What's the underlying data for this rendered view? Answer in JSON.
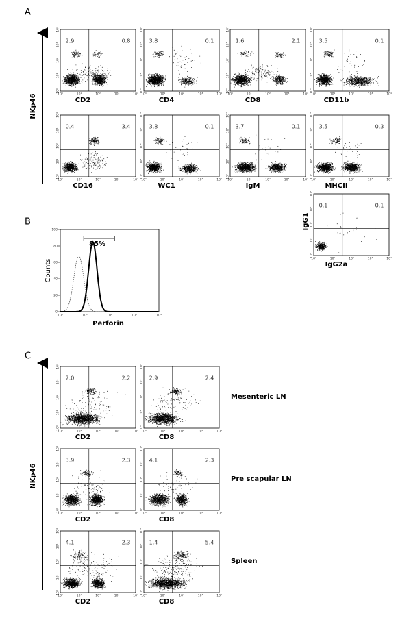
{
  "panel_a": {
    "label": "A",
    "y_label": "NKp46",
    "plots": [
      {
        "x_label": "CD2",
        "ul": "2.9",
        "ur": "0.8"
      },
      {
        "x_label": "CD4",
        "ul": "3.8",
        "ur": "0.1"
      },
      {
        "x_label": "CD8",
        "ul": "1.6",
        "ur": "2.1"
      },
      {
        "x_label": "CD11b",
        "ul": "3.5",
        "ur": "0.1"
      },
      {
        "x_label": "CD16",
        "ul": "0.4",
        "ur": "3.4"
      },
      {
        "x_label": "WC1",
        "ul": "3.8",
        "ur": "0.1"
      },
      {
        "x_label": "IgM",
        "ul": "3.7",
        "ur": "0.1"
      },
      {
        "x_label": "MHCII",
        "ul": "3.5",
        "ur": "0.3"
      }
    ],
    "isotype": {
      "x_label": "IgG2a",
      "y_label": "IgG1",
      "ul": "0.1",
      "ur": "0.1"
    }
  },
  "panel_b": {
    "label": "B",
    "y_label": "Counts",
    "x_label": "Perforin",
    "gate": "85%",
    "yticks": [
      0,
      20,
      40,
      60,
      80,
      100
    ]
  },
  "panel_c": {
    "label": "C",
    "y_label": "NKp46",
    "rows": [
      {
        "name": "Mesenteric LN",
        "plots": [
          {
            "x_label": "CD2",
            "ul": "2.0",
            "ur": "2.2"
          },
          {
            "x_label": "CD8",
            "ul": "2.9",
            "ur": "2.4"
          }
        ]
      },
      {
        "name": "Pre scapular LN",
        "plots": [
          {
            "x_label": "CD2",
            "ul": "3.9",
            "ur": "2.3"
          },
          {
            "x_label": "CD8",
            "ul": "4.1",
            "ur": "2.3"
          }
        ]
      },
      {
        "name": "Spleen",
        "plots": [
          {
            "x_label": "CD2",
            "ul": "4.1",
            "ur": "2.3"
          },
          {
            "x_label": "CD8",
            "ul": "1.4",
            "ur": "5.4"
          }
        ]
      }
    ]
  },
  "axis_ticks": [
    "10⁰",
    "10¹",
    "10²",
    "10³",
    "10⁴"
  ]
}
